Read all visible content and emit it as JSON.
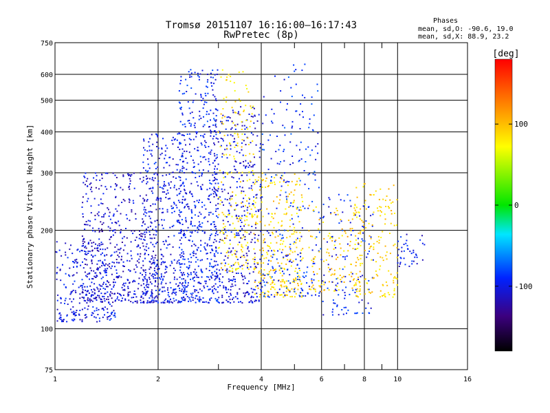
{
  "chart_data": {
    "type": "scatter",
    "title": "Tromsø 20151107 16:16:00–16:17:43",
    "subtitle": "RwPretec (8p)",
    "xlabel": "Frequency [MHz]",
    "ylabel": "Stationary phase Virtual Height [km]",
    "x_scale": "log",
    "y_scale": "log",
    "xlim": [
      1,
      16
    ],
    "ylim": [
      75,
      750
    ],
    "x_ticks": [
      1,
      2,
      4,
      6,
      8,
      10,
      16
    ],
    "x_tick_labels": [
      "1",
      "2",
      "4",
      "6",
      "8",
      "10",
      "16"
    ],
    "x_minor_ticks": [
      3,
      5,
      7,
      9
    ],
    "y_ticks": [
      75,
      100,
      200,
      300,
      400,
      500,
      600,
      750
    ],
    "y_tick_labels": [
      "75",
      "100",
      "200",
      "300",
      "400",
      "500",
      "600",
      "750"
    ],
    "grid": true,
    "stats": {
      "heading": "Phases",
      "line_o": "mean, sd,O: -90.6, 19.0",
      "line_x": "mean, sd,X:  88.9, 23.2"
    },
    "colorbar": {
      "label": "[deg]",
      "range": [
        -180,
        180
      ],
      "ticks": [
        100,
        0,
        -100
      ],
      "tick_labels": [
        "100",
        "0",
        "-100"
      ]
    },
    "colors": {
      "o_mode": "#0a26e6",
      "x_mode": "#e8e81a",
      "grid": "#000000"
    },
    "point_groups": [
      {
        "mode": "O",
        "phase": -100,
        "f_range": [
          1.0,
          1.5
        ],
        "h_range": [
          105,
          185
        ],
        "count": 260
      },
      {
        "mode": "O",
        "phase": -110,
        "f_range": [
          1.2,
          2.0
        ],
        "h_range": [
          120,
          300
        ],
        "count": 520
      },
      {
        "mode": "O",
        "phase": -100,
        "f_range": [
          1.8,
          2.4
        ],
        "h_range": [
          120,
          400
        ],
        "count": 420
      },
      {
        "mode": "O",
        "phase": -95,
        "f_range": [
          2.3,
          3.0
        ],
        "h_range": [
          120,
          620
        ],
        "count": 560
      },
      {
        "mode": "O",
        "phase": -105,
        "f_range": [
          2.9,
          4.0
        ],
        "h_range": [
          120,
          480
        ],
        "count": 420
      },
      {
        "mode": "X",
        "phase": 85,
        "f_range": [
          3.0,
          3.8
        ],
        "h_range": [
          150,
          620
        ],
        "count": 200
      },
      {
        "mode": "X",
        "phase": 90,
        "f_range": [
          3.8,
          5.3
        ],
        "h_range": [
          125,
          300
        ],
        "count": 300
      },
      {
        "mode": "O",
        "phase": -90,
        "f_range": [
          4.0,
          6.0
        ],
        "h_range": [
          125,
          650
        ],
        "count": 260
      },
      {
        "mode": "X",
        "phase": 95,
        "f_range": [
          5.5,
          7.8
        ],
        "h_range": [
          130,
          240
        ],
        "count": 140
      },
      {
        "mode": "O",
        "phase": -95,
        "f_range": [
          6.0,
          8.5
        ],
        "h_range": [
          110,
          260
        ],
        "count": 120
      },
      {
        "mode": "X",
        "phase": 90,
        "f_range": [
          7.5,
          10.0
        ],
        "h_range": [
          125,
          280
        ],
        "count": 160
      },
      {
        "mode": "O",
        "phase": -100,
        "f_range": [
          10.0,
          12.0
        ],
        "h_range": [
          155,
          195
        ],
        "count": 40
      }
    ]
  }
}
